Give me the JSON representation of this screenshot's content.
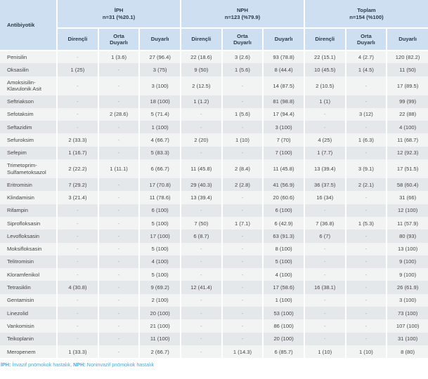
{
  "header": {
    "antibiotic": "Antibiyotik",
    "groups": [
      {
        "name": "İPH",
        "n": "n=31 (%20.1)"
      },
      {
        "name": "NPH",
        "n": "n=123 (%79.9)"
      },
      {
        "name": "Toplam",
        "n": "n=154 (%100)"
      }
    ],
    "sub": [
      "Dirençli",
      "Orta Duyarlı",
      "Duyarlı"
    ]
  },
  "rows": [
    [
      "Penisilin",
      "-",
      "1 (3.6)",
      "27 (96.4)",
      "22 (18.6)",
      "3 (2.6)",
      "93 (78.8)",
      "22 (15.1)",
      "4 (2.7)",
      "120 (82.2)"
    ],
    [
      "Oksasilin",
      "1 (25)",
      "-",
      "3 (75)",
      "9 (50)",
      "1 (5.6)",
      "8 (44.4)",
      "10 (45.5)",
      "1 (4.5)",
      "11 (50)"
    ],
    [
      "Amoksisilin-Klavulonik Asit",
      "-",
      "-",
      "3 (100)",
      "2 (12.5)",
      "-",
      "14 (87.5)",
      "2 (10.5)",
      "-",
      "17 (89.5)"
    ],
    [
      "Seftriakson",
      "-",
      "-",
      "18 (100)",
      "1 (1.2)",
      "-",
      "81 (98.8)",
      "1 (1)",
      "-",
      "99 (99)"
    ],
    [
      "Sefotaksim",
      "-",
      "2 (28.6)",
      "5 (71.4)",
      "-",
      "1 (5.6)",
      "17 (94.4)",
      "-",
      "3 (12)",
      "22 (88)"
    ],
    [
      "Seftazidim",
      "-",
      "-",
      "1 (100)",
      "-",
      "-",
      "3 (100)",
      "-",
      "-",
      "4 (100)"
    ],
    [
      "Sefuroksim",
      "2 (33.3)",
      "-",
      "4 (66.7)",
      "2 (20)",
      "1 (10)",
      "7 (70)",
      "4 (25)",
      "1 (6.3)",
      "11 (68.7)"
    ],
    [
      "Sefepim",
      "1 (16.7)",
      "-",
      "5 (83.3)",
      "-",
      "-",
      "7 (100)",
      "1 (7.7)",
      "-",
      "12 (92.3)"
    ],
    [
      "Trimetoprim-Sulfametoksazol",
      "2 (22.2)",
      "1 (11.1)",
      "6 (66.7)",
      "11 (45.8)",
      "2 (8.4)",
      "11 (45.8)",
      "13 (39.4)",
      "3 (9.1)",
      "17 (51.5)"
    ],
    [
      "Eritromisin",
      "7 (29.2)",
      "-",
      "17 (70.8)",
      "29 (40.3)",
      "2 (2.8)",
      "41 (56.9)",
      "36 (37.5)",
      "2 (2.1)",
      "58 (60.4)"
    ],
    [
      "Klindamisin",
      "3 (21.4)",
      "-",
      "11 (78.6)",
      "13 (39.4)",
      "-",
      "20 (60.6)",
      "16 (34)",
      "-",
      "31 (66)"
    ],
    [
      "Rifampin",
      "-",
      "-",
      "6 (100)",
      "-",
      "-",
      "6 (100)",
      "-",
      "-",
      "12 (100)"
    ],
    [
      "Siprofloksasin",
      "-",
      "-",
      "5 (100)",
      "7 (50)",
      "1 (7.1)",
      "6 (42.9)",
      "7 (36.8)",
      "1 (5.3)",
      "11 (57.9)"
    ],
    [
      "Levofloksasin",
      "-",
      "-",
      "17 (100)",
      "6 (8.7)",
      "-",
      "63 (91.3)",
      "6 (7)",
      "-",
      "80 (93)"
    ],
    [
      "Moksifloksasin",
      "-",
      "-",
      "5 (100)",
      "-",
      "-",
      "8 (100)",
      "-",
      "-",
      "13 (100)"
    ],
    [
      "Telitromisin",
      "-",
      "-",
      "4 (100)",
      "-",
      "-",
      "5 (100)",
      "-",
      "-",
      "9 (100)"
    ],
    [
      "Kloramfenikol",
      "-",
      "-",
      "5 (100)",
      "-",
      "-",
      "4 (100)",
      "-",
      "-",
      "9 (100)"
    ],
    [
      "Tetrasiklin",
      "4 (30.8)",
      "-",
      "9 (69.2)",
      "12 (41.4)",
      "-",
      "17 (58.6)",
      "16 (38.1)",
      "-",
      "26 (61.9)"
    ],
    [
      "Gentamisin",
      "-",
      "-",
      "2 (100)",
      "-",
      "-",
      "1 (100)",
      "-",
      "-",
      "3 (100)"
    ],
    [
      "Linezolid",
      "-",
      "-",
      "20 (100)",
      "-",
      "-",
      "53 (100)",
      "-",
      "-",
      "73 (100)"
    ],
    [
      "Vankomisin",
      "-",
      "-",
      "21 (100)",
      "-",
      "-",
      "86 (100)",
      "-",
      "-",
      "107 (100)"
    ],
    [
      "Teikoplanin",
      "-",
      "-",
      "11 (100)",
      "-",
      "-",
      "20 (100)",
      "-",
      "-",
      "31 (100)"
    ],
    [
      "Meropenem",
      "1 (33.3)",
      "-",
      "2 (66.7)",
      "-",
      "1 (14.3)",
      "6 (85.7)",
      "1 (10)",
      "1 (10)",
      "8 (80)"
    ]
  ],
  "footnote": {
    "abbr1": "İPH:",
    "text1": " İnvazif pnömokok hastalık, ",
    "abbr2": "NPH:",
    "text2": " Noninvazif pnömokok hastalık"
  },
  "colors": {
    "header_bg": "#cddff0",
    "row_odd": "#f2f4f4",
    "row_even": "#e5e8ea",
    "footnote": "#4aa8d6"
  }
}
